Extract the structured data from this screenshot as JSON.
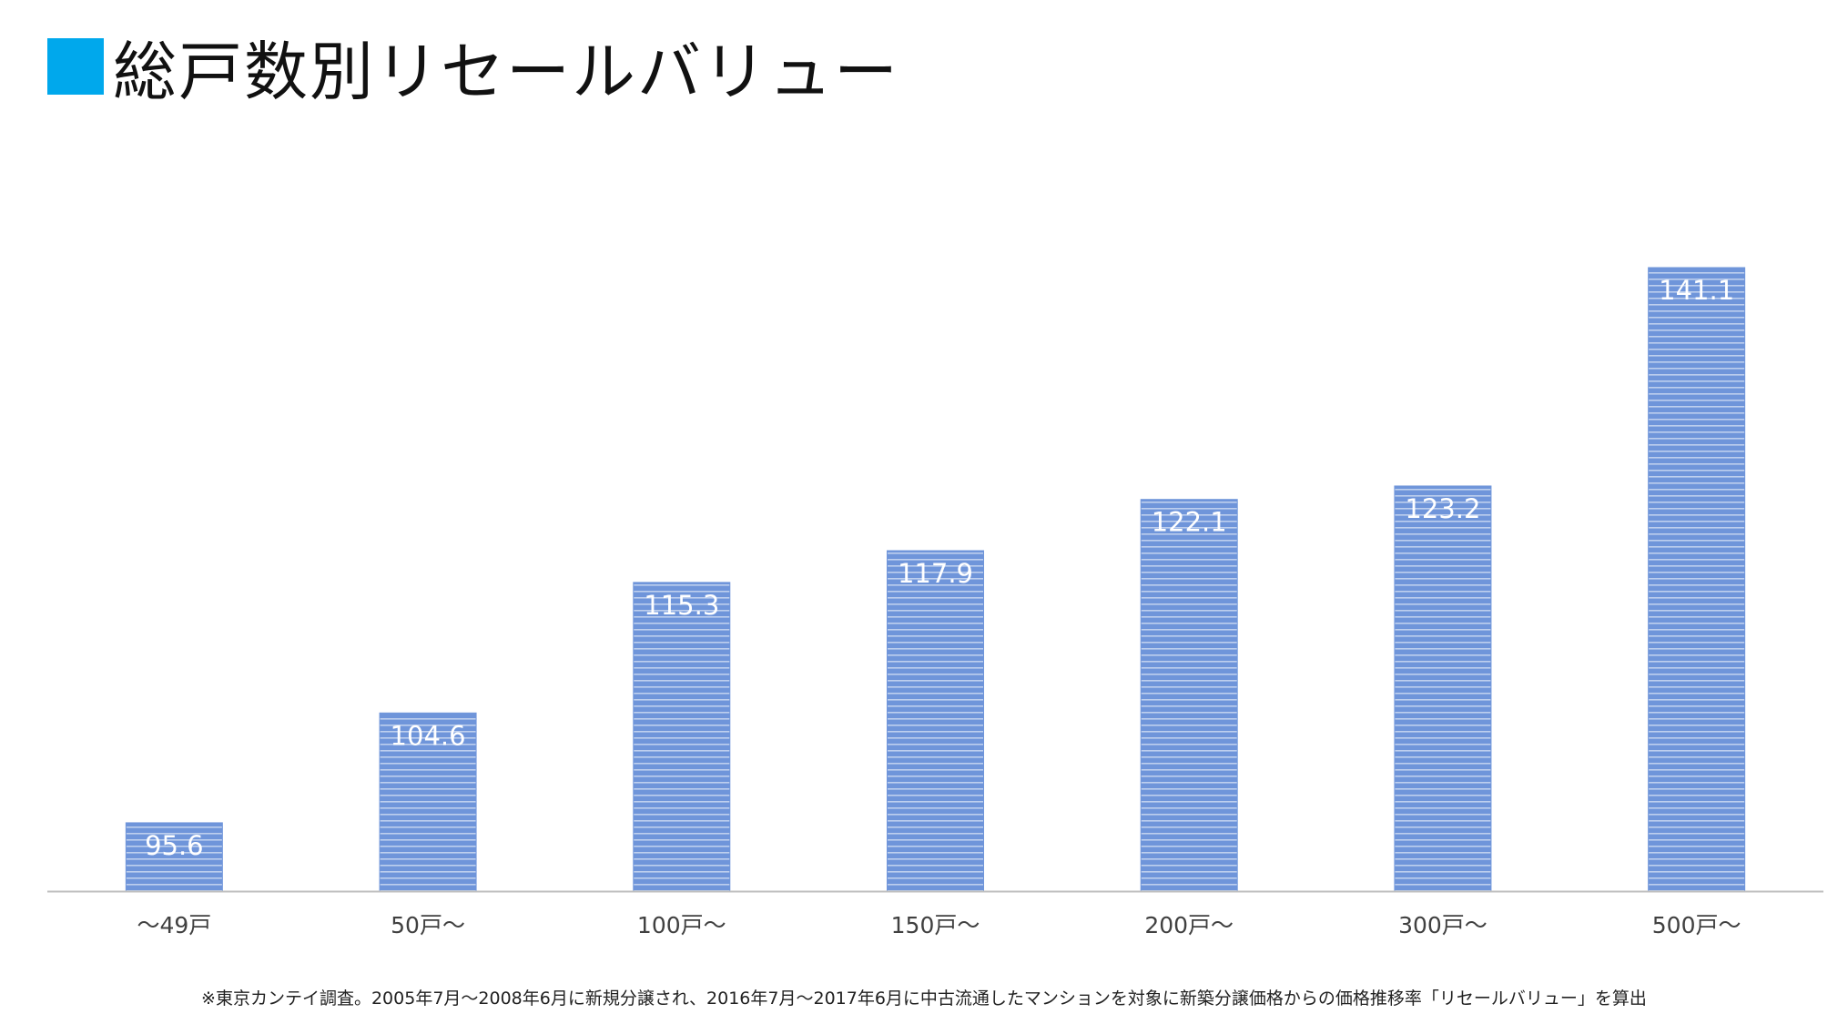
{
  "colors": {
    "title_marker": "#00a8ec",
    "bar_fill": "#6f95da",
    "bar_stripe": "#ffffff",
    "axis": "#bfbfbf",
    "bar_label": "#ffffff",
    "category_label": "#404040"
  },
  "title": "総戸数別リセールバリュー",
  "footnote": "※東京カンテイ調査。2005年7月～2008年6月に新規分譲され、2016年7月～2017年6月に中古流通したマンションを対象に新築分譲価格からの価格推移率「リセールバリュー」を算出",
  "chart_data": {
    "type": "bar",
    "title": "総戸数別リセールバリュー",
    "categories": [
      "～49戸",
      "50戸～",
      "100戸～",
      "150戸～",
      "200戸～",
      "300戸～",
      "500戸～"
    ],
    "values": [
      95.6,
      104.6,
      115.3,
      117.9,
      122.1,
      123.2,
      141.1
    ],
    "data_labels": [
      "95.6",
      "104.6",
      "115.3",
      "117.9",
      "122.1",
      "123.2",
      "141.1"
    ],
    "ylim": [
      90,
      141.1
    ],
    "grid": false,
    "legend": "none"
  }
}
